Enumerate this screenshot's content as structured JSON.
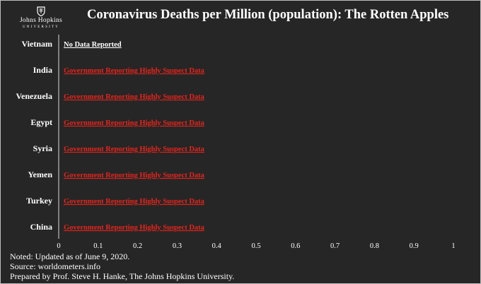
{
  "header": {
    "title": "Coronavirus Deaths per Million (population):  The Rotten Apples",
    "logo_name": "Johns Hopkins",
    "logo_sub": "UNIVERSITY"
  },
  "chart_data": {
    "type": "bar",
    "title": "Coronavirus Deaths per Million (population):  The Rotten Apples",
    "xlabel": "",
    "ylabel": "",
    "orientation": "horizontal",
    "categories": [
      "Vietnam",
      "India",
      "Venezuela",
      "Egypt",
      "Syria",
      "Yemen",
      "Turkey",
      "China"
    ],
    "values": [
      null,
      null,
      null,
      null,
      null,
      null,
      null,
      null
    ],
    "annotations": [
      "No Data Reported",
      "Government Reporting Highly Suspect Data",
      "Government Reporting Highly Suspect Data",
      "Government Reporting Highly Suspect Data",
      "Government Reporting Highly Suspect Data",
      "Government Reporting Highly Suspect Data",
      "Government Reporting Highly Suspect Data",
      "Government Reporting Highly Suspect Data"
    ],
    "annotation_colors": [
      "#ffffff",
      "#e8231b",
      "#e8231b",
      "#e8231b",
      "#e8231b",
      "#e8231b",
      "#e8231b",
      "#e8231b"
    ],
    "xlim": [
      0,
      1
    ],
    "xticks": [
      "0",
      "0.1",
      "0.2",
      "0.3",
      "0.4",
      "0.5",
      "0.6",
      "0.7",
      "0.8",
      "0.9",
      "1"
    ],
    "grid": false
  },
  "notes": [
    "Noted: Updated as of June 9, 2020.",
    "Source: worldometers.info",
    "Prepared by Prof. Steve H. Hanke, The Johns Hopkins University."
  ],
  "colors": {
    "background": "#262626",
    "text": "#ffffff",
    "suspect": "#e8231b"
  }
}
